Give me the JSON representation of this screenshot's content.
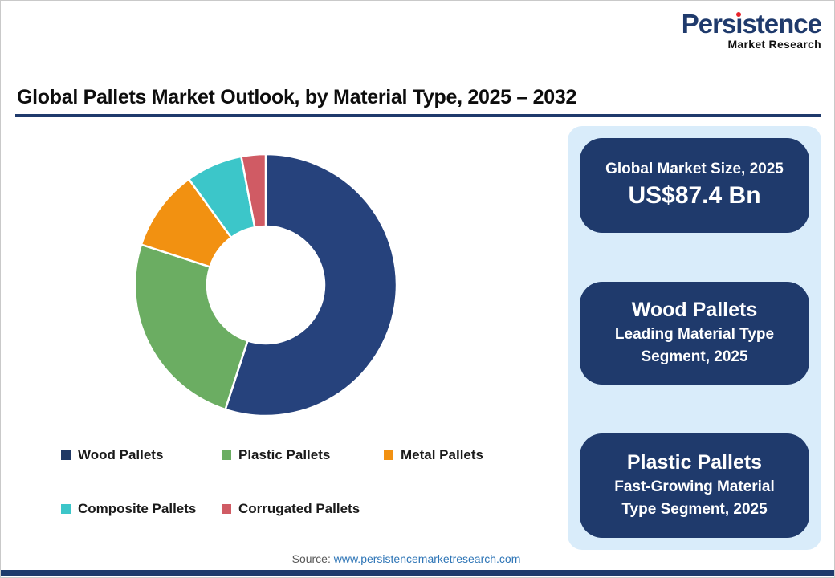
{
  "logo": {
    "name": "Persistence",
    "name_pre": "Pers",
    "name_i": "ı",
    "name_post": "stence",
    "tagline": "Market Research"
  },
  "title": "Global Pallets Market Outlook, by Material Type, 2025 – 2032",
  "chart_data": {
    "type": "pie",
    "subtype": "donut",
    "title": "Global Pallets Market Outlook, by Material Type, 2025 – 2032",
    "categories": [
      "Wood Pallets",
      "Plastic Pallets",
      "Metal Pallets",
      "Composite Pallets",
      "Corrugated Pallets"
    ],
    "values": [
      55,
      25,
      10,
      7,
      3
    ],
    "values_note": "percent share, estimated from arc angles; no numeric labels shown in image",
    "colors": [
      "#26427c",
      "#6bad62",
      "#f29111",
      "#3cc6c9",
      "#d05b64"
    ],
    "legend_colors": [
      "#1f3864",
      "#6bad62",
      "#f29111",
      "#3cc6c9",
      "#d05b64"
    ],
    "legend_position": "bottom",
    "start_angle_deg": 0,
    "clockwise": true,
    "donut_hole_ratio": 0.45,
    "slice_gap_color": "#ffffff"
  },
  "panel": {
    "cards": [
      {
        "title": "Global Market Size, 2025",
        "value": "US$87.4 Bn"
      },
      {
        "title": "Wood Pallets",
        "subtitle": "Leading Material Type Segment, 2025"
      },
      {
        "title": "Plastic Pallets",
        "subtitle": "Fast-Growing Material Type Segment, 2025"
      }
    ]
  },
  "footer": {
    "source_label": "Source:",
    "source_link": "www.persistencemarketresearch.com"
  },
  "theme": {
    "navy": "#1f3a6c",
    "panel_bg": "#d9ecfa",
    "link": "#2e75b6",
    "source_text": "#595959",
    "logo_dot": "#e8232a",
    "text": "#0d0d0d"
  }
}
